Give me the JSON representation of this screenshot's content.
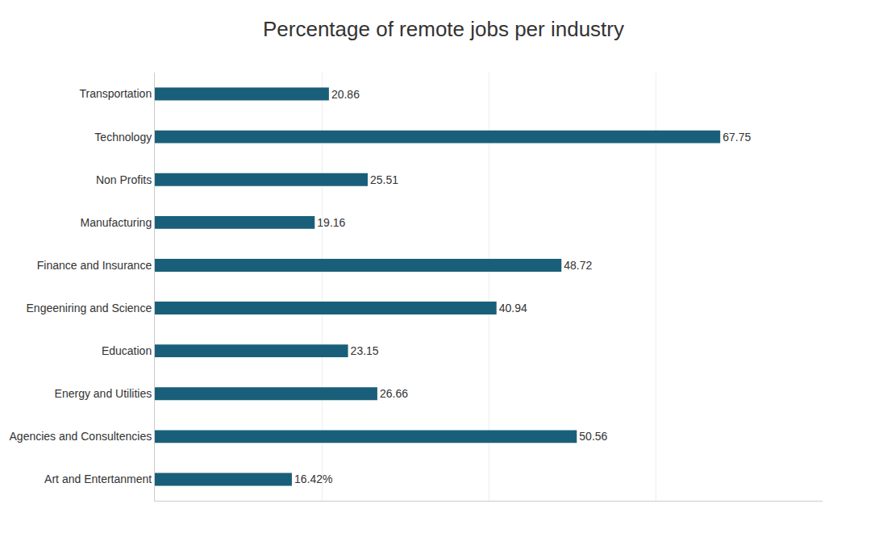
{
  "chart_data": {
    "type": "bar",
    "orientation": "horizontal",
    "title": "Percentage of remote jobs per industry",
    "categories": [
      "Art and Entertanment",
      "Agencies and Consultencies",
      "Energy and Utilities",
      "Education",
      "Engeeniring and Science",
      "Finance and Insurance",
      "Manufacturing",
      "Non Profits",
      "Technology",
      "Transportation"
    ],
    "values": [
      16.42,
      50.56,
      26.66,
      23.15,
      40.94,
      48.72,
      19.16,
      25.51,
      67.75,
      20.86
    ],
    "value_labels": [
      "16.42%",
      "50.56",
      "26.66",
      "23.15",
      "40.94",
      "48.72",
      "19.16",
      "25.51",
      "67.75",
      "20.86"
    ],
    "data_labels": true,
    "color": "#1a5f7a",
    "xlim": [
      0,
      80
    ],
    "xticks": [
      20,
      40,
      60,
      80
    ],
    "grid": true,
    "tick_labels": "y"
  }
}
